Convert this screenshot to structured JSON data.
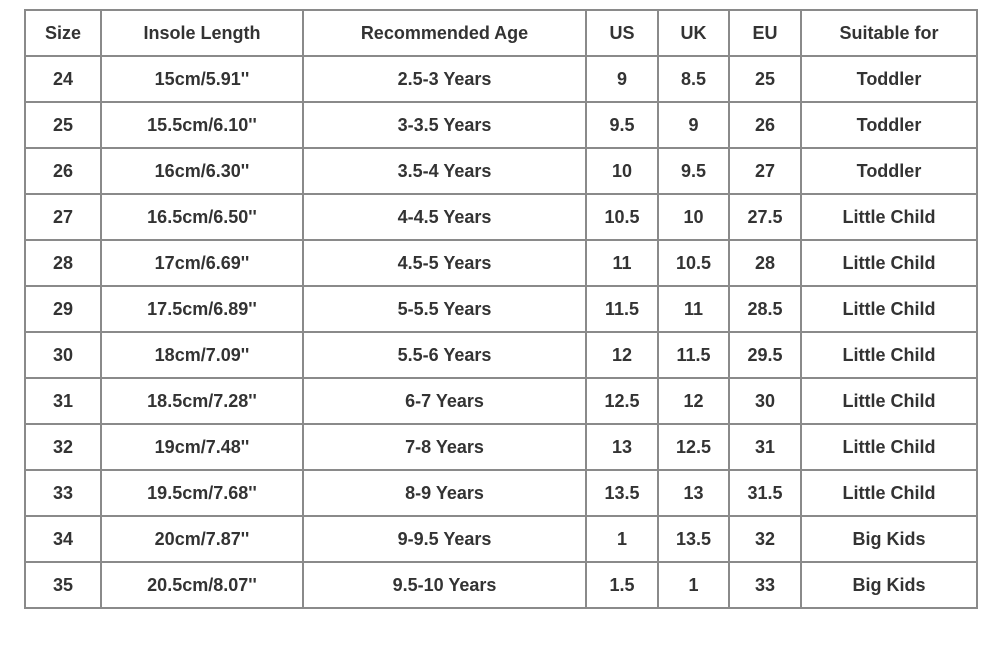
{
  "table": {
    "header": [
      "Size",
      "Insole Length",
      "Recommended Age",
      "US",
      "UK",
      "EU",
      "Suitable for"
    ],
    "rows": [
      [
        "24",
        "15cm/5.91''",
        "2.5-3 Years",
        "9",
        "8.5",
        "25",
        "Toddler"
      ],
      [
        "25",
        "15.5cm/6.10''",
        "3-3.5 Years",
        "9.5",
        "9",
        "26",
        "Toddler"
      ],
      [
        "26",
        "16cm/6.30''",
        "3.5-4 Years",
        "10",
        "9.5",
        "27",
        "Toddler"
      ],
      [
        "27",
        "16.5cm/6.50''",
        "4-4.5 Years",
        "10.5",
        "10",
        "27.5",
        "Little Child"
      ],
      [
        "28",
        "17cm/6.69''",
        "4.5-5 Years",
        "11",
        "10.5",
        "28",
        "Little Child"
      ],
      [
        "29",
        "17.5cm/6.89''",
        "5-5.5 Years",
        "11.5",
        "11",
        "28.5",
        "Little Child"
      ],
      [
        "30",
        "18cm/7.09''",
        "5.5-6 Years",
        "12",
        "11.5",
        "29.5",
        "Little Child"
      ],
      [
        "31",
        "18.5cm/7.28''",
        "6-7 Years",
        "12.5",
        "12",
        "30",
        "Little Child"
      ],
      [
        "32",
        "19cm/7.48''",
        "7-8 Years",
        "13",
        "12.5",
        "31",
        "Little Child"
      ],
      [
        "33",
        "19.5cm/7.68''",
        "8-9 Years",
        "13.5",
        "13",
        "31.5",
        "Little Child"
      ],
      [
        "34",
        "20cm/7.87''",
        "9-9.5 Years",
        "1",
        "13.5",
        "32",
        "Big Kids"
      ],
      [
        "35",
        "20.5cm/8.07''",
        "9.5-10 Years",
        "1.5",
        "1",
        "33",
        "Big Kids"
      ]
    ]
  }
}
